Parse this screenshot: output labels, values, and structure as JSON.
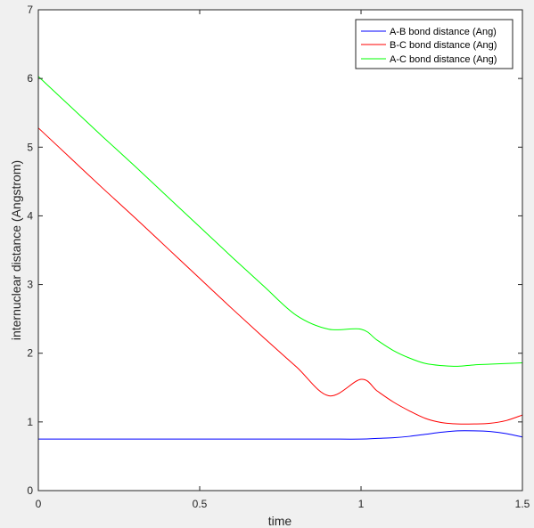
{
  "figure": {
    "background": "#f0f0f0",
    "axes_background": "#ffffff",
    "axis_color": "#262626"
  },
  "chart_data": {
    "type": "line",
    "title": "",
    "xlabel": "time",
    "ylabel": "internuclear distance (Angstrom)",
    "xlim": [
      0,
      1.5
    ],
    "ylim": [
      0,
      7
    ],
    "xticks": [
      0,
      0.5,
      1,
      1.5
    ],
    "xtick_labels": [
      "0",
      "0.5",
      "1",
      "1.5"
    ],
    "yticks": [
      0,
      1,
      2,
      3,
      4,
      5,
      6,
      7
    ],
    "ytick_labels": [
      "0",
      "1",
      "2",
      "3",
      "4",
      "5",
      "6",
      "7"
    ],
    "grid": false,
    "legend_position": "top-right",
    "x": [
      0,
      0.1,
      0.2,
      0.3,
      0.4,
      0.5,
      0.6,
      0.7,
      0.8,
      0.9,
      1.0,
      1.05,
      1.1,
      1.15,
      1.2,
      1.25,
      1.3,
      1.35,
      1.4,
      1.45,
      1.5
    ],
    "series": [
      {
        "name": "A-B bond distance (Ang)",
        "color": "#0000ff",
        "values": [
          0.75,
          0.75,
          0.75,
          0.75,
          0.75,
          0.75,
          0.75,
          0.75,
          0.75,
          0.75,
          0.75,
          0.76,
          0.77,
          0.79,
          0.82,
          0.85,
          0.87,
          0.87,
          0.86,
          0.83,
          0.78
        ]
      },
      {
        "name": "B-C bond distance (Ang)",
        "color": "#ff0000",
        "values": [
          5.28,
          4.84,
          4.4,
          3.97,
          3.53,
          3.09,
          2.65,
          2.22,
          1.8,
          1.38,
          1.62,
          1.45,
          1.29,
          1.16,
          1.05,
          0.99,
          0.97,
          0.97,
          0.98,
          1.02,
          1.1
        ]
      },
      {
        "name": "A-C bond distance (Ang)",
        "color": "#00ff00",
        "values": [
          6.03,
          5.59,
          5.15,
          4.72,
          4.28,
          3.84,
          3.4,
          2.97,
          2.55,
          2.35,
          2.35,
          2.19,
          2.04,
          1.93,
          1.85,
          1.82,
          1.81,
          1.83,
          1.84,
          1.85,
          1.86
        ]
      }
    ]
  }
}
